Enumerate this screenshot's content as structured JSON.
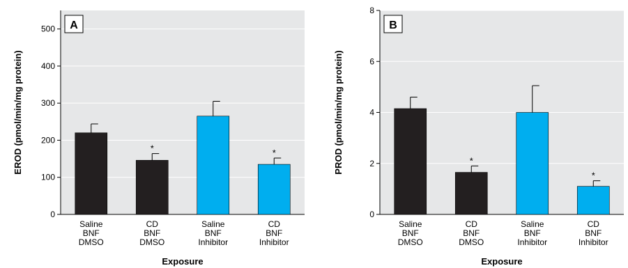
{
  "colors": {
    "black_bar": "#231f20",
    "blue_bar": "#00aeef",
    "plot_bg": "#e6e7e8",
    "grid": "#ffffff"
  },
  "chart_data": [
    {
      "type": "bar",
      "panel_label": "A",
      "categories": [
        [
          "Saline",
          "BNF",
          "DMSO"
        ],
        [
          "CD",
          "BNF",
          "DMSO"
        ],
        [
          "Saline",
          "BNF",
          "Inhibitor"
        ],
        [
          "CD",
          "BNF",
          "Inhibitor"
        ]
      ],
      "values": [
        220,
        146,
        265,
        135
      ],
      "errors": [
        24,
        18,
        40,
        17
      ],
      "significance": [
        "",
        "*",
        "",
        "*"
      ],
      "bar_colors": [
        "black",
        "black",
        "blue",
        "blue"
      ],
      "ylim": [
        0,
        550
      ],
      "yticks": [
        0,
        100,
        200,
        300,
        400,
        500
      ],
      "ylabel": "EROD (pmol/min/mg protein)",
      "xlabel": "Exposure",
      "grid": true
    },
    {
      "type": "bar",
      "panel_label": "B",
      "categories": [
        [
          "Saline",
          "BNF",
          "DMSO"
        ],
        [
          "CD",
          "BNF",
          "DMSO"
        ],
        [
          "Saline",
          "BNF",
          "Inhibitor"
        ],
        [
          "CD",
          "BNF",
          "Inhibitor"
        ]
      ],
      "values": [
        4.15,
        1.65,
        4.0,
        1.1
      ],
      "errors": [
        0.45,
        0.25,
        1.05,
        0.22
      ],
      "significance": [
        "",
        "*",
        "",
        "*"
      ],
      "bar_colors": [
        "black",
        "black",
        "blue",
        "blue"
      ],
      "ylim": [
        0,
        8
      ],
      "yticks": [
        0,
        2,
        4,
        6,
        8
      ],
      "ylabel": "PROD (pmol/min/mg protein)",
      "xlabel": "Exposure",
      "grid": true
    }
  ]
}
